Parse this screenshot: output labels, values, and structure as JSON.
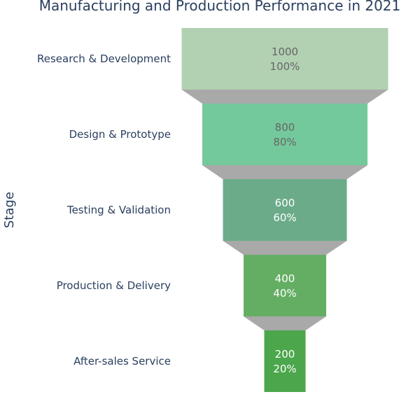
{
  "chart_data": {
    "type": "funnel",
    "title": "Manufacturing and Production Performance in 2021",
    "ylabel": "Stage",
    "categories": [
      "Research & Development",
      "Design & Prototype",
      "Testing & Validation",
      "Production & Delivery",
      "After-sales Service"
    ],
    "values": [
      1000,
      800,
      600,
      400,
      200
    ],
    "percent_labels": [
      "100%",
      "80%",
      "60%",
      "40%",
      "20%"
    ],
    "colors": [
      "#b2d0b2",
      "#74c99c",
      "#6bab89",
      "#64ae64",
      "#4ca64c"
    ],
    "label_colors": [
      "#666666",
      "#666666",
      "#ffffff",
      "#ffffff",
      "#ffffff"
    ],
    "connector_color": "#a9a9a9"
  }
}
